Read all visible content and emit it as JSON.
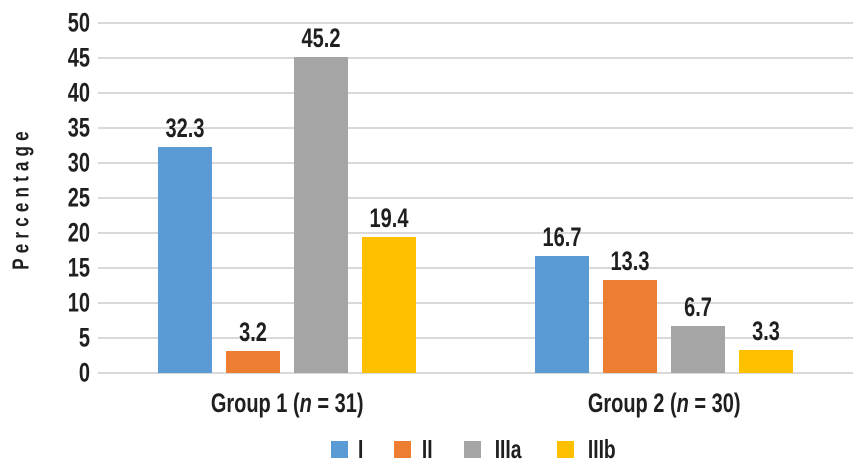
{
  "colors": {
    "background": "#ffffff",
    "text": "#1f1f1f",
    "gridline": "#d9d9d9",
    "series_I": "#5B9BD5",
    "series_II": "#ED7D31",
    "series_IIIa": "#A5A5A5",
    "series_IIIb": "#FFC000"
  },
  "chart_data": {
    "type": "bar",
    "title": "",
    "xlabel": "",
    "ylabel": "Percentage",
    "ylim": [
      0,
      50
    ],
    "ytick_step": 5,
    "yticks": [
      0,
      5,
      10,
      15,
      20,
      25,
      30,
      35,
      40,
      45,
      50
    ],
    "grid": true,
    "grid_axis": "y",
    "legend_position": "bottom",
    "value_labels_shown": true,
    "value_label_decimals": 1,
    "categories": [
      {
        "text": "Group 1 (n = 31)",
        "pre": "Group 1 (",
        "italic": "n",
        "post": " = 31)"
      },
      {
        "text": "Group 2 (n = 30)",
        "pre": "Group 2 (",
        "italic": "n",
        "post": " = 30)"
      }
    ],
    "series": [
      {
        "name": "I",
        "color": "#5B9BD5",
        "values": [
          32.3,
          16.7
        ]
      },
      {
        "name": "II",
        "color": "#ED7D31",
        "values": [
          3.2,
          13.3
        ]
      },
      {
        "name": "IIIa",
        "color": "#A5A5A5",
        "values": [
          45.2,
          6.7
        ]
      },
      {
        "name": "IIIb",
        "color": "#FFC000",
        "values": [
          19.4,
          3.3
        ]
      }
    ]
  }
}
